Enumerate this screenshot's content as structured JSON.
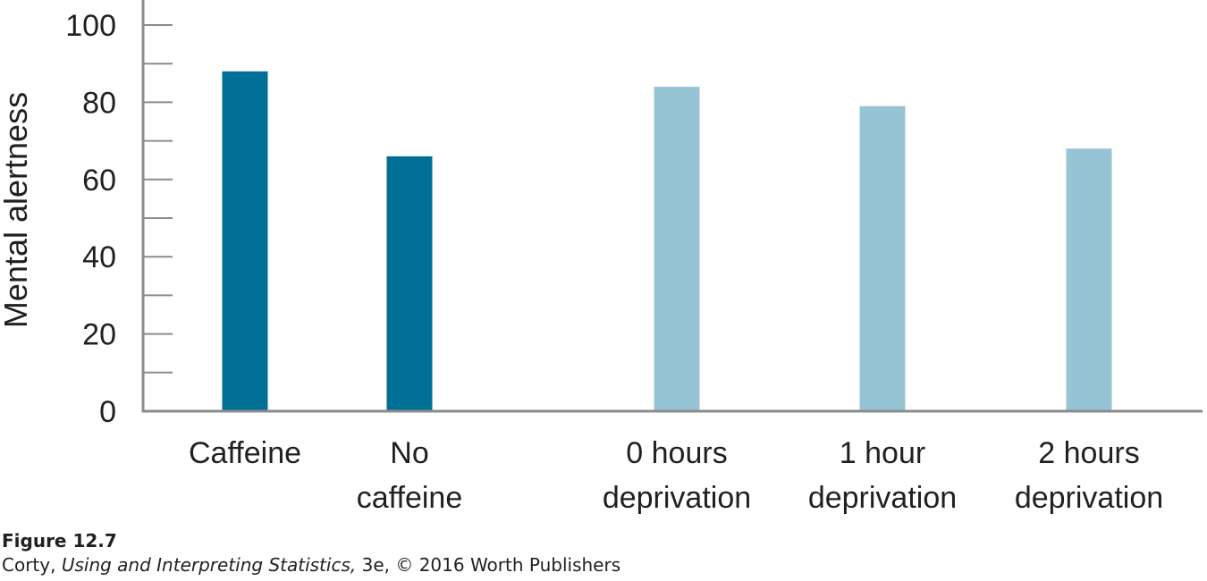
{
  "chart_data": {
    "type": "bar",
    "title": "",
    "xlabel": "",
    "ylabel": "Mental alertness",
    "ylim": [
      0,
      100
    ],
    "yticks": [
      "0",
      "20",
      "40",
      "60",
      "80",
      "100"
    ],
    "grid": false,
    "categories": [
      [
        "Caffeine"
      ],
      [
        "No",
        "caffeine"
      ],
      [
        "0 hours",
        "deprivation"
      ],
      [
        "1 hour",
        "deprivation"
      ],
      [
        "2 hours",
        "deprivation"
      ]
    ],
    "values": [
      88,
      66,
      84,
      79,
      68
    ],
    "colors": [
      "#006f95",
      "#006f95",
      "#97c4d5",
      "#97c4d5",
      "#97c4d5"
    ]
  },
  "caption": {
    "label": "Figure 12.7",
    "author": "Corty, ",
    "book": "Using and Interpreting Statistics,",
    "rest": " 3e, © 2016 Worth Publishers"
  }
}
